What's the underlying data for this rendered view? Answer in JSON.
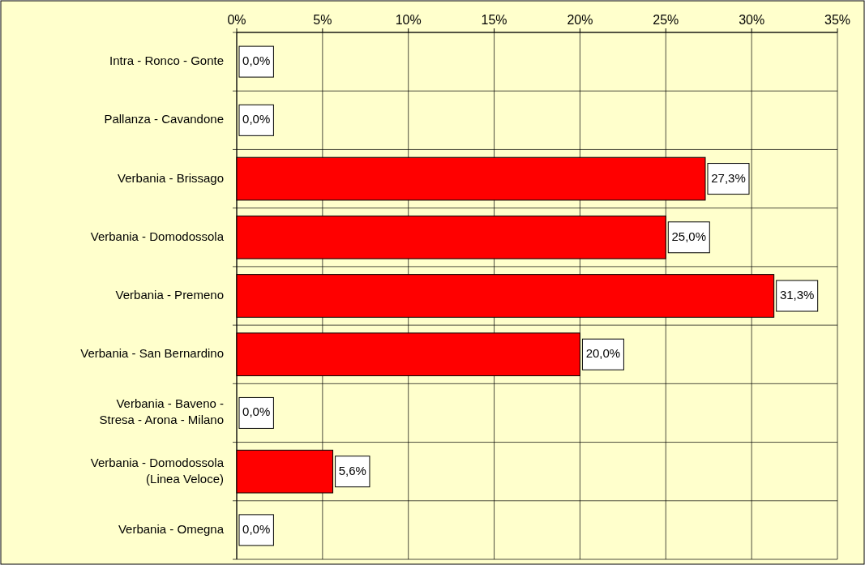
{
  "chart_data": {
    "type": "bar",
    "orientation": "horizontal",
    "categories": [
      "Intra - Ronco - Gonte",
      "Pallanza - Cavandone",
      "Verbania - Brissago",
      "Verbania - Domodossola",
      "Verbania - Premeno",
      "Verbania - San Bernardino",
      "Verbania - Baveno - Stresa - Arona - Milano",
      "Verbania - Domodossola (Linea Veloce)",
      "Verbania - Omegna"
    ],
    "values": [
      0,
      0,
      27.3,
      25,
      31.3,
      20,
      0,
      5.6,
      0
    ],
    "value_labels": [
      "0,0%",
      "0,0%",
      "27,3%",
      "25,0%",
      "31,3%",
      "20,0%",
      "0,0%",
      "5,6%",
      "0,0%"
    ],
    "color": "#ff0000",
    "xlim": [
      0,
      35
    ],
    "xticks": [
      {
        "value": 0,
        "label": "0%"
      },
      {
        "value": 5,
        "label": "5%"
      },
      {
        "value": 10,
        "label": "10%"
      },
      {
        "value": 15,
        "label": "15%"
      },
      {
        "value": 20,
        "label": "20%"
      },
      {
        "value": 25,
        "label": "25%"
      },
      {
        "value": 30,
        "label": "30%"
      },
      {
        "value": 35,
        "label": "35%"
      }
    ],
    "grid": true
  }
}
